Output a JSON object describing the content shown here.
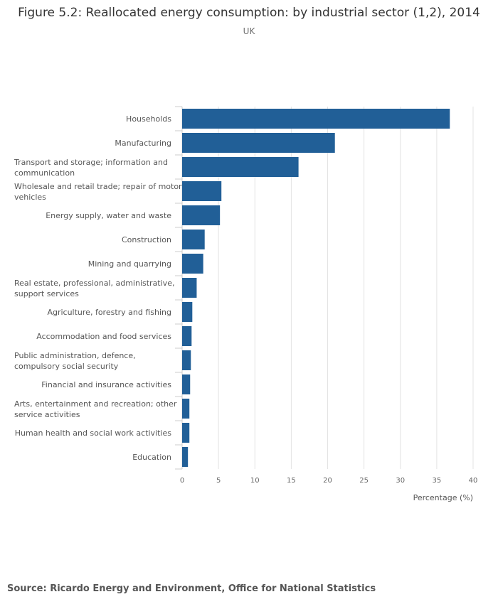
{
  "title": "Figure 5.2: Reallocated energy consumption: by industrial sector (1,2), 2014",
  "subtitle": "UK",
  "source": "Source: Ricardo Energy and Environment, Office for National Statistics",
  "colors": {
    "bar": "#215f97",
    "grid": "#e3e3e3",
    "text": "#555555"
  },
  "chart_data": {
    "type": "bar",
    "orientation": "horizontal",
    "categories": [
      "Households",
      "Manufacturing",
      [
        "Transport and storage; information and",
        "communication"
      ],
      [
        "Wholesale and retail trade; repair of motor",
        "vehicles"
      ],
      "Energy supply, water and waste",
      "Construction",
      "Mining and quarrying",
      [
        "Real estate, professional, administrative,",
        "support services"
      ],
      "Agriculture, forestry and fishing",
      "Accommodation and food services",
      [
        "Public administration, defence,",
        "compulsory social security"
      ],
      "Financial and insurance activities",
      [
        "Arts, entertainment and recreation; other",
        "service activities"
      ],
      "Human health and social work activities",
      "Education"
    ],
    "values": [
      36.8,
      21.0,
      16.0,
      5.4,
      5.2,
      3.1,
      2.9,
      2.0,
      1.4,
      1.3,
      1.2,
      1.1,
      1.0,
      1.0,
      0.8
    ],
    "xlabel": "Percentage (%)",
    "xlim": [
      0,
      40
    ],
    "xticks": [
      0,
      5,
      10,
      15,
      20,
      25,
      30,
      35,
      40
    ],
    "grid": true
  }
}
